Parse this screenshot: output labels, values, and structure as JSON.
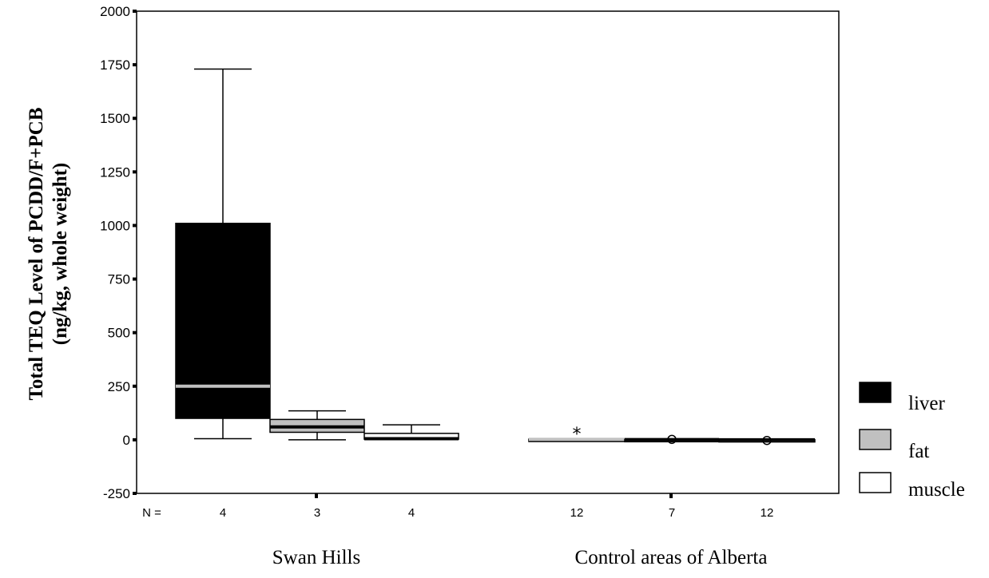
{
  "chart_data": {
    "type": "box",
    "ylabel_lines": [
      "Total TEQ Level of PCDD/F+PCB",
      "(ng/kg, whole weight)"
    ],
    "ylim": [
      -250,
      2000
    ],
    "yticks": [
      "-250",
      "0",
      "250",
      "500",
      "750",
      "1000",
      "1250",
      "1500",
      "1750",
      "2000"
    ],
    "n_prefix": "N =",
    "groups": [
      "Swan Hills",
      "Control areas of Alberta"
    ],
    "legend": [
      {
        "name": "liver",
        "color": "#000000"
      },
      {
        "name": "fat",
        "color": "#c0c0c0"
      },
      {
        "name": "muscle",
        "color": "#ffffff"
      }
    ],
    "legend_placement": "right",
    "grid": false,
    "boxes": [
      {
        "group": "Swan Hills",
        "series": "liver",
        "n": "4",
        "min": 5,
        "q1": 100,
        "median": 250,
        "q3": 1010,
        "max": 1730
      },
      {
        "group": "Swan Hills",
        "series": "fat",
        "n": "3",
        "min": 0,
        "q1": 35,
        "median": 60,
        "q3": 95,
        "max": 135
      },
      {
        "group": "Swan Hills",
        "series": "muscle",
        "n": "4",
        "min": 2,
        "q1": 3,
        "median": 5,
        "q3": 30,
        "max": 70
      },
      {
        "group": "Control areas of Alberta",
        "series": "liver",
        "n": "12",
        "min": 0,
        "q1": 0,
        "median": 2,
        "q3": 3,
        "max": 5,
        "outliers": [
          {
            "value": 45,
            "marker": "*"
          }
        ]
      },
      {
        "group": "Control areas of Alberta",
        "series": "fat",
        "n": "7",
        "min": 0,
        "q1": 0,
        "median": 1,
        "q3": 2,
        "max": 3,
        "outliers": [
          {
            "value": 2,
            "marker": "o"
          }
        ]
      },
      {
        "group": "Control areas of Alberta",
        "series": "muscle",
        "n": "12",
        "min": -3,
        "q1": -1,
        "median": 0,
        "q3": 1,
        "max": 2,
        "outliers": [
          {
            "value": -3,
            "marker": "o"
          }
        ]
      }
    ]
  }
}
